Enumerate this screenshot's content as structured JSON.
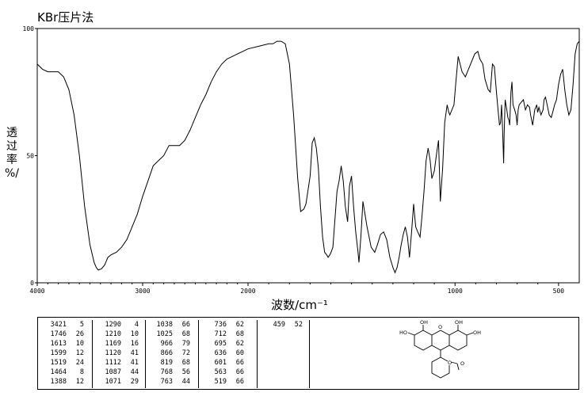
{
  "header": {
    "method": "KBr压片法"
  },
  "chart_data": {
    "type": "line",
    "title": "KBr压片法",
    "xlabel": "波数/cm⁻¹",
    "ylabel_chars": [
      "透",
      "过",
      "率",
      "%/"
    ],
    "xlim": [
      4000,
      400
    ],
    "ylim": [
      0,
      100
    ],
    "x_ticks": [
      4000,
      3000,
      2000,
      1000,
      500
    ],
    "x_tick_labels": [
      "4000",
      "3000",
      "2000",
      "1000",
      "500"
    ],
    "y_ticks": [
      0,
      50,
      100
    ],
    "y_tick_labels": [
      "0",
      "50",
      "100"
    ],
    "grid": false,
    "series": [
      {
        "x": [
          4000,
          3950,
          3900,
          3800,
          3750,
          3700,
          3650,
          3600,
          3550,
          3500,
          3460,
          3440,
          3421,
          3390,
          3360,
          3330,
          3300,
          3250,
          3200,
          3150,
          3100,
          3050,
          3000,
          2950,
          2900,
          2850,
          2800,
          2750,
          2700,
          2650,
          2600,
          2550,
          2500,
          2450,
          2400,
          2350,
          2300,
          2250,
          2200,
          2150,
          2100,
          2050,
          2000,
          1950,
          1900,
          1880,
          1860,
          1840,
          1820,
          1800,
          1780,
          1760,
          1746,
          1730,
          1720,
          1700,
          1690,
          1680,
          1670,
          1660,
          1650,
          1640,
          1630,
          1620,
          1613,
          1605,
          1599,
          1590,
          1580,
          1570,
          1560,
          1550,
          1540,
          1530,
          1519,
          1510,
          1500,
          1490,
          1480,
          1470,
          1464,
          1455,
          1445,
          1435,
          1425,
          1415,
          1405,
          1388,
          1375,
          1360,
          1345,
          1330,
          1315,
          1300,
          1290,
          1280,
          1270,
          1260,
          1250,
          1240,
          1230,
          1220,
          1210,
          1200,
          1190,
          1180,
          1169,
          1160,
          1150,
          1140,
          1130,
          1120,
          1112,
          1100,
          1087,
          1080,
          1071,
          1060,
          1050,
          1038,
          1030,
          1025,
          1015,
          1005,
          995,
          985,
          966,
          950,
          935,
          920,
          905,
          890,
          880,
          866,
          855,
          840,
          830,
          819,
          810,
          800,
          790,
          785,
          780,
          775,
          770,
          768,
          765,
          763,
          758,
          750,
          745,
          740,
          736,
          730,
          725,
          720,
          712,
          705,
          700,
          695,
          690,
          680,
          670,
          660,
          650,
          640,
          635,
          625,
          615,
          605,
          601,
          595,
          585,
          575,
          570,
          563,
          555,
          545,
          535,
          525,
          519,
          510,
          500,
          490,
          480,
          470,
          460,
          450,
          440,
          430,
          420,
          410,
          400
        ],
        "y": [
          86,
          84,
          83,
          83,
          81,
          76,
          66,
          50,
          30,
          15,
          8,
          6,
          5,
          5.5,
          7,
          10,
          11,
          12,
          14,
          17,
          22,
          27,
          34,
          40,
          46,
          48,
          50,
          54,
          54,
          54,
          56,
          60,
          65,
          70,
          74,
          79,
          83,
          86,
          88,
          89,
          90,
          91,
          92,
          93,
          94,
          94,
          95,
          95,
          94,
          86,
          66,
          41,
          28,
          29,
          31,
          42,
          55,
          57,
          53,
          45,
          30,
          18,
          12,
          11,
          10,
          11,
          12,
          14,
          25,
          36,
          40,
          46,
          40,
          30,
          24,
          38,
          42,
          30,
          20,
          13,
          8,
          18,
          32,
          27,
          22,
          18,
          14,
          12,
          15,
          19,
          20,
          17,
          10,
          6,
          4,
          6,
          10,
          15,
          19,
          22,
          18,
          10,
          20,
          31,
          22,
          20,
          18,
          26,
          36,
          48,
          53,
          48,
          41,
          44,
          52,
          56,
          32,
          45,
          63,
          70,
          67,
          66,
          68,
          70,
          80,
          89,
          83,
          81,
          84,
          87,
          90,
          91,
          88,
          86,
          80,
          76,
          75,
          86,
          85,
          75,
          66,
          62,
          63,
          70,
          60,
          54,
          47,
          58,
          72,
          68,
          65,
          64,
          62,
          75,
          79,
          70,
          68,
          66,
          62,
          68,
          70,
          71,
          72,
          68,
          70,
          69,
          66,
          62,
          68,
          70,
          67,
          69,
          66,
          68,
          72,
          73,
          70,
          66,
          65,
          68,
          70,
          72,
          78,
          82,
          84,
          76,
          70,
          66,
          68,
          78,
          90,
          94,
          95
        ]
      }
    ],
    "peaks": [
      {
        "wn": "3421",
        "t": "5"
      },
      {
        "wn": "1746",
        "t": "26"
      },
      {
        "wn": "1613",
        "t": "10"
      },
      {
        "wn": "1599",
        "t": "12"
      },
      {
        "wn": "1519",
        "t": "24"
      },
      {
        "wn": "1464",
        "t": "8"
      },
      {
        "wn": "1388",
        "t": "12"
      },
      {
        "wn": "1290",
        "t": "4"
      },
      {
        "wn": "1210",
        "t": "10"
      },
      {
        "wn": "1169",
        "t": "16"
      },
      {
        "wn": "1120",
        "t": "41"
      },
      {
        "wn": "1112",
        "t": "41"
      },
      {
        "wn": "1087",
        "t": "44"
      },
      {
        "wn": "1071",
        "t": "29"
      },
      {
        "wn": "1038",
        "t": "66"
      },
      {
        "wn": "1025",
        "t": "68"
      },
      {
        "wn": "966",
        "t": "79"
      },
      {
        "wn": "866",
        "t": "72"
      },
      {
        "wn": "819",
        "t": "68"
      },
      {
        "wn": "768",
        "t": "56"
      },
      {
        "wn": "763",
        "t": "44"
      },
      {
        "wn": "736",
        "t": "62"
      },
      {
        "wn": "712",
        "t": "68"
      },
      {
        "wn": "695",
        "t": "62"
      },
      {
        "wn": "636",
        "t": "60"
      },
      {
        "wn": "601",
        "t": "66"
      },
      {
        "wn": "563",
        "t": "66"
      },
      {
        "wn": "519",
        "t": "66"
      },
      {
        "wn": "459",
        "t": "52"
      }
    ]
  },
  "structure": {
    "labels": [
      "HO",
      "OH",
      "OH",
      "OH",
      "O",
      "O",
      "O"
    ]
  }
}
